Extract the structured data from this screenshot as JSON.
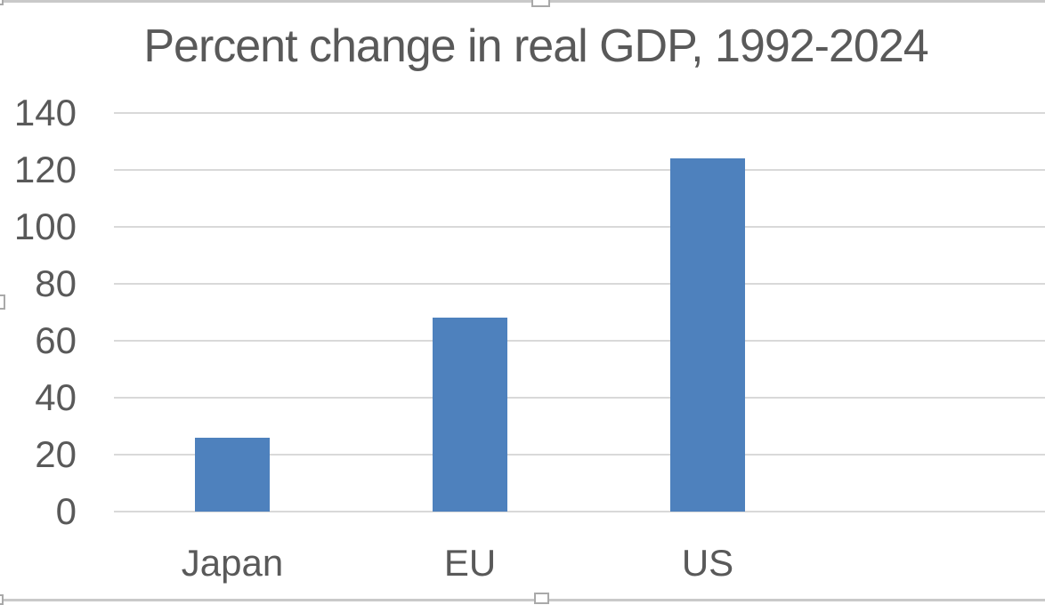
{
  "chart_data": {
    "type": "bar",
    "title": "Percent change in real GDP, 1992-2024",
    "categories": [
      "Japan",
      "EU",
      "US"
    ],
    "values": [
      26,
      68,
      124
    ],
    "yticks": [
      0,
      20,
      40,
      60,
      80,
      100,
      120,
      140
    ],
    "ylim": [
      0,
      140
    ],
    "xlabel": "",
    "ylabel": "",
    "grid": true,
    "legend": false,
    "bar_color": "#4e81bd",
    "text_color": "#595959",
    "gridline_color": "#d9d9d9",
    "border_color": "#c9c9c9"
  },
  "chart_state": {
    "selected": true,
    "visible_resize_handles": [
      "top-center",
      "left-middle",
      "bottom-center",
      "top-left-corner",
      "bottom-left-corner"
    ]
  }
}
